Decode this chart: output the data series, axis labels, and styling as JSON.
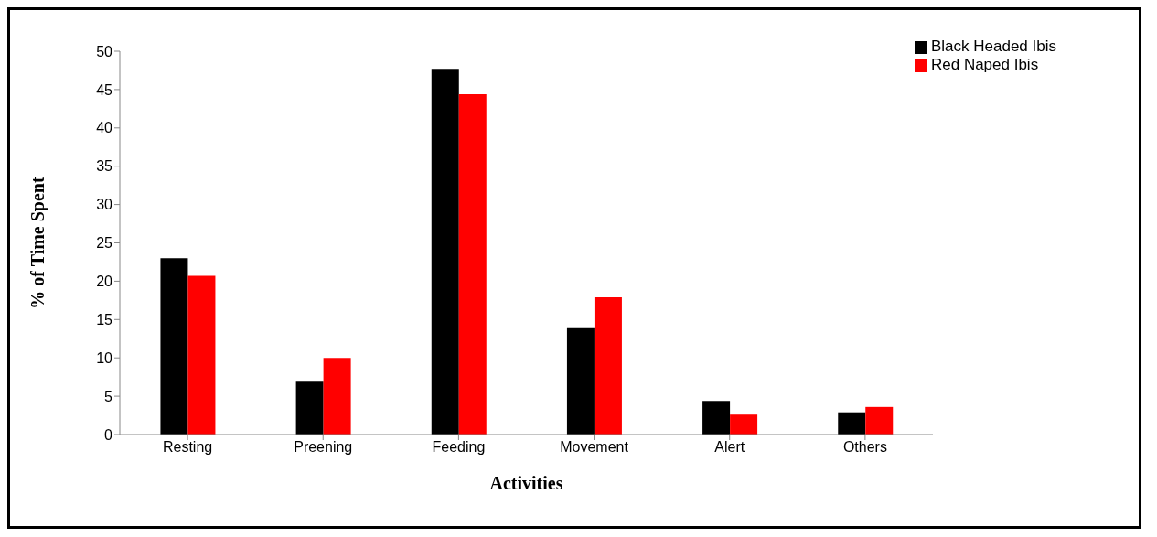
{
  "chart_data": {
    "type": "bar",
    "xlabel": "Activities",
    "ylabel": "% of Time Spent",
    "categories": [
      "Resting",
      "Preening",
      "Feeding",
      "Movement",
      "Alert",
      "Others"
    ],
    "series": [
      {
        "name": "Black Headed Ibis",
        "color": "#000000",
        "values": [
          23,
          6.9,
          47.7,
          14,
          4.4,
          2.9
        ]
      },
      {
        "name": "Red Naped  Ibis",
        "color": "#ff0000",
        "values": [
          20.7,
          10,
          44.4,
          17.9,
          2.6,
          3.6
        ]
      }
    ],
    "ylim": [
      0,
      50
    ],
    "yticks": [
      0,
      5,
      10,
      15,
      20,
      25,
      30,
      35,
      40,
      45,
      50
    ],
    "grid": false,
    "legend": "top right"
  }
}
